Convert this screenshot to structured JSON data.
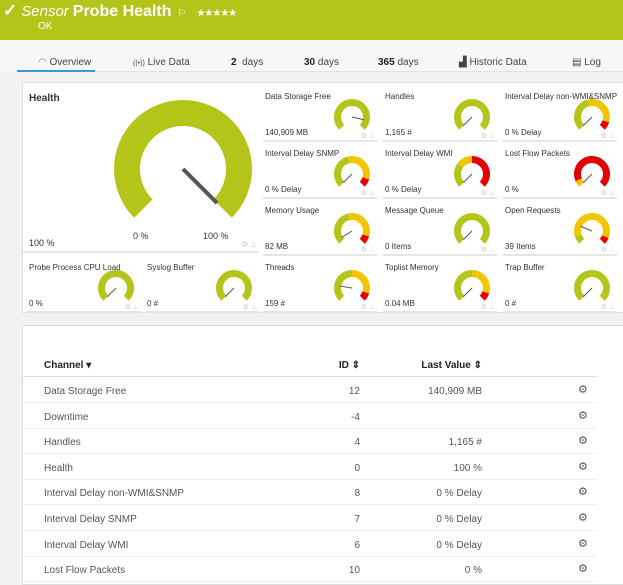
{
  "header": {
    "prefix": "Sensor",
    "title": "Probe Health",
    "status": "OK",
    "stars": "★★★★★",
    "flag": "⚐",
    "bg": "#b4c51a"
  },
  "tabs": [
    {
      "label": "Overview",
      "icon": "gauge-icon"
    },
    {
      "label": "Live Data",
      "icon": "broadcast-icon"
    },
    {
      "num": "2",
      "label": "days"
    },
    {
      "num": "30",
      "label": "days"
    },
    {
      "num": "365",
      "label": "days"
    },
    {
      "label": "Historic Data",
      "icon": "area-chart-icon"
    },
    {
      "label": "Log",
      "icon": "log-icon"
    }
  ],
  "health": {
    "name": "Health",
    "value": "100 %",
    "min": "0 %",
    "max": "100 %",
    "needle": 1,
    "zones": [
      [
        0,
        1,
        "#b4c51a"
      ]
    ]
  },
  "gauges": [
    {
      "name": "Data Storage Free",
      "value": "140,909 MB",
      "needle": 0.88,
      "zones": [
        [
          0,
          1,
          "#b4c51a"
        ]
      ]
    },
    {
      "name": "Handles",
      "value": "1,165 #",
      "needle": 0,
      "zones": [
        [
          0,
          1,
          "#b4c51a"
        ]
      ]
    },
    {
      "name": "Interval Delay non-WMI&SNMP",
      "value": "0 % Delay",
      "needle": 0,
      "zones": [
        [
          0,
          0.45,
          "#b4c51a"
        ],
        [
          0.45,
          0.9,
          "#f2c500"
        ],
        [
          0.9,
          1,
          "#e30000"
        ]
      ]
    },
    {
      "name": "Interval Delay SNMP",
      "value": "0 % Delay",
      "needle": 0,
      "zones": [
        [
          0,
          0.45,
          "#b4c51a"
        ],
        [
          0.45,
          0.9,
          "#f2c500"
        ],
        [
          0.9,
          1,
          "#e30000"
        ]
      ]
    },
    {
      "name": "Interval Delay WMI",
      "value": "0 % Delay",
      "needle": 0,
      "zones": [
        [
          0,
          0.3,
          "#b4c51a"
        ],
        [
          0.3,
          0.5,
          "#f2c500"
        ],
        [
          0.5,
          1,
          "#e30000"
        ]
      ]
    },
    {
      "name": "Lost Flow Packets",
      "value": "0 %",
      "needle": 0,
      "zones": [
        [
          0,
          0.08,
          "#f2c500"
        ],
        [
          0.08,
          1,
          "#e30000"
        ]
      ]
    },
    {
      "name": "Memory Usage",
      "value": "82 MB",
      "needle": 0.05,
      "zones": [
        [
          0,
          0.45,
          "#b4c51a"
        ],
        [
          0.45,
          0.9,
          "#f2c500"
        ],
        [
          0.9,
          1,
          "#e30000"
        ]
      ]
    },
    {
      "name": "Message Queue",
      "value": "0 Items",
      "needle": 0,
      "zones": [
        [
          0,
          1,
          "#b4c51a"
        ]
      ]
    },
    {
      "name": "Open Requests",
      "value": "39 Items",
      "needle": 0.25,
      "zones": [
        [
          0,
          0.1,
          "#b4c51a"
        ],
        [
          0.1,
          0.92,
          "#f2c500"
        ],
        [
          0.92,
          1,
          "#e30000"
        ]
      ]
    },
    {
      "name": "Probe Process CPU Load",
      "value": "0 %",
      "needle": 0,
      "zones": [
        [
          0,
          1,
          "#b4c51a"
        ]
      ]
    },
    {
      "name": "Syslog Buffer",
      "value": "0 #",
      "needle": 0,
      "zones": [
        [
          0,
          1,
          "#b4c51a"
        ]
      ]
    },
    {
      "name": "Threads",
      "value": "159 #",
      "needle": 0.2,
      "zones": [
        [
          0,
          0.5,
          "#b4c51a"
        ],
        [
          0.5,
          0.9,
          "#f2c500"
        ],
        [
          0.9,
          1,
          "#e30000"
        ]
      ]
    },
    {
      "name": "Toplist Memory",
      "value": "0.04 MB",
      "needle": 0,
      "zones": [
        [
          0,
          0.5,
          "#b4c51a"
        ],
        [
          0.5,
          0.9,
          "#f2c500"
        ],
        [
          0.9,
          1,
          "#e30000"
        ]
      ]
    },
    {
      "name": "Trap Buffer",
      "value": "0 #",
      "needle": 0,
      "zones": [
        [
          0,
          1,
          "#b4c51a"
        ]
      ]
    }
  ],
  "table": {
    "headers": {
      "channel": "Channel ▾",
      "id": "ID ⇕",
      "last": "Last Value ⇕"
    },
    "rows": [
      {
        "channel": "Data Storage Free",
        "id": "12",
        "last": "140,909 MB"
      },
      {
        "channel": "Downtime",
        "id": "-4",
        "last": ""
      },
      {
        "channel": "Handles",
        "id": "4",
        "last": "1,165 #"
      },
      {
        "channel": "Health",
        "id": "0",
        "last": "100 %"
      },
      {
        "channel": "Interval Delay non-WMI&SNMP",
        "id": "8",
        "last": "0 % Delay"
      },
      {
        "channel": "Interval Delay SNMP",
        "id": "7",
        "last": "0 % Delay"
      },
      {
        "channel": "Interval Delay WMI",
        "id": "6",
        "last": "0 % Delay"
      },
      {
        "channel": "Lost Flow Packets",
        "id": "10",
        "last": "0 %"
      }
    ]
  }
}
